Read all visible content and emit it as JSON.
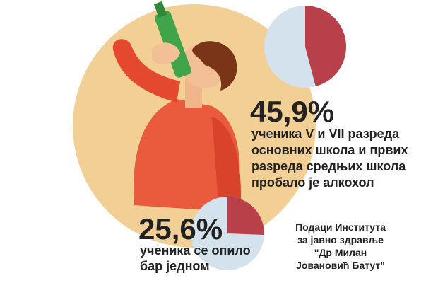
{
  "chart_data": [
    {
      "type": "pie",
      "value": 45.9,
      "value_label": "45,9%",
      "caption": [
        "ученика V и VII разреда",
        "основних школа и првих",
        "разреда средњих школа",
        "пробало је алкохол"
      ],
      "color": "#b8404a",
      "rest_color": "#d3e2ec"
    },
    {
      "type": "pie",
      "value": 25.6,
      "value_label": "25,6%",
      "caption": [
        "ученика се опило",
        "бар једном"
      ],
      "color": "#b8404a",
      "rest_color": "#d3e2ec"
    }
  ],
  "source": [
    "Подаци Института",
    "за јавно здравље",
    "\"Др Милан",
    "Јовановић Батут\""
  ]
}
